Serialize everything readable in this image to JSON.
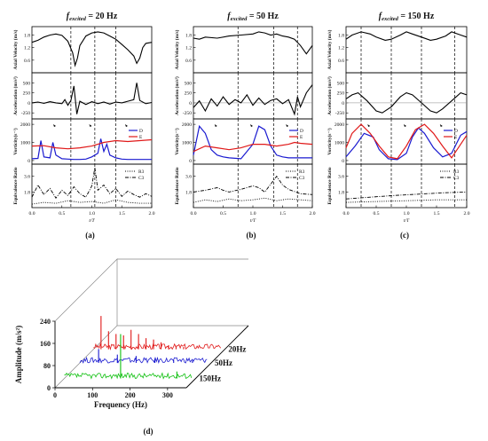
{
  "panels": [
    {
      "title_italic": "f",
      "title_sub": "excited",
      "title_rest": " = 20 Hz",
      "label": "(a)",
      "xlabel": "t/T",
      "legend_vorticity": [
        "D",
        "E"
      ],
      "legend_ratio": [
        "R3",
        "C3"
      ]
    },
    {
      "title_italic": "f",
      "title_sub": "excited",
      "title_rest": " = 50 Hz",
      "label": "(b)",
      "xlabel": "t/T",
      "legend_vorticity": [
        "D",
        "E"
      ],
      "legend_ratio": [
        "R3",
        "C3"
      ]
    },
    {
      "title_italic": "f",
      "title_sub": "excited",
      "title_rest": " = 150 Hz",
      "label": "(c)",
      "xlabel": "t/T",
      "legend_vorticity": [
        "D",
        "E"
      ],
      "legend_ratio": [
        "R3",
        "C3"
      ]
    }
  ],
  "row_labels": {
    "velocity": "Axial Velocity (m/s)",
    "acceleration": "Acceleration (m/s²)",
    "vorticity": "Vorticity(s⁻¹)",
    "ratio": "Equivalence Ratio"
  },
  "waterfall": {
    "label": "(d)",
    "ylabel": "Amplitude (m/s²)",
    "xlabel": "Frequency (Hz)",
    "series_labels": [
      "20Hz",
      "50Hz",
      "150Hz"
    ],
    "series_colors": [
      "#e01818",
      "#1a1ad0",
      "#10c010"
    ]
  },
  "chart_data": [
    {
      "type": "line",
      "panel": "a",
      "x_range": [
        0,
        2.0
      ],
      "x_ticks": [
        "0.0",
        "0.5",
        "1.0",
        "1.5",
        "2.0"
      ],
      "dashed_lines_x": [
        0.65,
        1.05,
        1.4
      ],
      "rows": {
        "velocity": {
          "ylim": [
            0.0,
            2.2
          ],
          "yticks": [
            "0.6",
            "1.2",
            "1.8"
          ],
          "x": [
            0,
            0.1,
            0.2,
            0.3,
            0.4,
            0.5,
            0.6,
            0.68,
            0.72,
            0.76,
            0.8,
            0.9,
            1.0,
            1.1,
            1.2,
            1.3,
            1.4,
            1.5,
            1.6,
            1.7,
            1.75,
            1.8,
            1.85,
            1.9,
            2.0
          ],
          "y": [
            1.45,
            1.55,
            1.7,
            1.8,
            1.85,
            1.78,
            1.5,
            0.95,
            0.35,
            0.7,
            1.3,
            1.75,
            1.9,
            1.95,
            1.9,
            1.75,
            1.6,
            1.35,
            1.1,
            0.8,
            0.45,
            0.7,
            1.2,
            1.4,
            1.45
          ]
        },
        "acceleration": {
          "ylim": [
            -400,
            750
          ],
          "yticks": [
            "-250",
            "0",
            "250",
            "500"
          ],
          "x": [
            0,
            0.1,
            0.2,
            0.3,
            0.4,
            0.5,
            0.55,
            0.6,
            0.65,
            0.7,
            0.75,
            0.8,
            0.9,
            1.0,
            1.1,
            1.2,
            1.3,
            1.4,
            1.5,
            1.6,
            1.7,
            1.75,
            1.8,
            1.9,
            2.0
          ],
          "y": [
            0,
            20,
            -10,
            30,
            0,
            -20,
            80,
            -60,
            60,
            420,
            -280,
            40,
            -40,
            30,
            -20,
            20,
            -30,
            20,
            0,
            40,
            80,
            500,
            60,
            -20,
            10
          ]
        },
        "vorticity": {
          "ylim": [
            -200,
            2300
          ],
          "yticks": [
            "0",
            "1000",
            "2000"
          ],
          "series": [
            {
              "name": "D",
              "color": "#1a1ad0",
              "x": [
                0,
                0.1,
                0.15,
                0.2,
                0.3,
                0.35,
                0.4,
                0.5,
                0.6,
                0.7,
                0.8,
                0.9,
                1.0,
                1.1,
                1.15,
                1.2,
                1.25,
                1.3,
                1.4,
                1.5,
                1.6,
                1.8,
                2.0
              ],
              "y": [
                100,
                120,
                1100,
                200,
                150,
                1000,
                300,
                100,
                80,
                60,
                60,
                80,
                200,
                400,
                1200,
                500,
                900,
                300,
                150,
                80,
                60,
                60,
                60
              ]
            },
            {
              "name": "E",
              "color": "#e01818",
              "x": [
                0,
                0.2,
                0.4,
                0.6,
                0.8,
                1.0,
                1.2,
                1.4,
                1.6,
                1.8,
                2.0
              ],
              "y": [
                800,
                820,
                700,
                650,
                700,
                800,
                1000,
                1100,
                1050,
                1100,
                1150
              ]
            }
          ]
        },
        "ratio": {
          "ylim": [
            0,
            5.0
          ],
          "yticks": [
            "1.8",
            "3.6"
          ],
          "series": [
            {
              "name": "R3",
              "style": "dotted",
              "x": [
                0,
                0.2,
                0.4,
                0.6,
                0.8,
                1.0,
                1.2,
                1.4,
                1.6,
                1.8,
                2.0
              ],
              "y": [
                0.4,
                0.6,
                0.5,
                0.8,
                0.6,
                0.7,
                0.5,
                0.9,
                0.6,
                0.5,
                0.5
              ]
            },
            {
              "name": "C3",
              "style": "dashdot",
              "x": [
                0,
                0.1,
                0.2,
                0.3,
                0.4,
                0.5,
                0.6,
                0.7,
                0.8,
                0.9,
                1.0,
                1.05,
                1.1,
                1.2,
                1.3,
                1.4,
                1.5,
                1.6,
                1.7,
                1.8,
                1.9,
                2.0
              ],
              "y": [
                1.2,
                2.6,
                1.5,
                2.2,
                1.1,
                2.0,
                1.4,
                2.4,
                1.6,
                1.2,
                2.5,
                4.6,
                2.0,
                2.6,
                1.6,
                2.2,
                1.3,
                1.9,
                1.5,
                1.2,
                1.6,
                1.3
              ]
            }
          ]
        }
      }
    },
    {
      "type": "line",
      "panel": "b",
      "x_range": [
        0,
        2.0
      ],
      "x_ticks": [
        "0.0",
        "0.5",
        "1.0",
        "1.5",
        "2.0"
      ],
      "dashed_lines_x": [
        0.75,
        1.35,
        1.75
      ],
      "rows": {
        "velocity": {
          "ylim": [
            0.0,
            2.2
          ],
          "yticks": [
            "0.6",
            "1.2",
            "1.8"
          ],
          "x": [
            0,
            0.1,
            0.2,
            0.4,
            0.6,
            0.8,
            1.0,
            1.1,
            1.2,
            1.3,
            1.4,
            1.5,
            1.6,
            1.7,
            1.8,
            1.9,
            2.0
          ],
          "y": [
            1.65,
            1.6,
            1.7,
            1.65,
            1.75,
            1.8,
            1.85,
            1.95,
            1.9,
            1.8,
            1.85,
            1.75,
            1.7,
            1.6,
            1.3,
            0.9,
            1.3
          ]
        },
        "acceleration": {
          "ylim": [
            -400,
            750
          ],
          "yticks": [
            "-250",
            "0",
            "250",
            "500"
          ],
          "x": [
            0,
            0.1,
            0.2,
            0.3,
            0.4,
            0.5,
            0.6,
            0.7,
            0.8,
            0.9,
            1.0,
            1.1,
            1.2,
            1.3,
            1.4,
            1.5,
            1.6,
            1.7,
            1.75,
            1.8,
            1.9,
            2.0
          ],
          "y": [
            -120,
            50,
            -200,
            100,
            -80,
            150,
            -40,
            80,
            0,
            200,
            -60,
            120,
            -40,
            60,
            100,
            -20,
            80,
            -280,
            150,
            -100,
            250,
            450
          ]
        },
        "vorticity": {
          "ylim": [
            -200,
            2300
          ],
          "yticks": [
            "0",
            "1000",
            "2000"
          ],
          "series": [
            {
              "name": "D",
              "color": "#1a1ad0",
              "x": [
                0,
                0.1,
                0.2,
                0.3,
                0.4,
                0.5,
                0.6,
                0.8,
                1.0,
                1.1,
                1.2,
                1.3,
                1.4,
                1.5,
                1.6,
                1.8,
                2.0
              ],
              "y": [
                300,
                1900,
                1500,
                600,
                300,
                200,
                150,
                100,
                900,
                1900,
                1700,
                800,
                300,
                200,
                150,
                150,
                150
              ]
            },
            {
              "name": "E",
              "color": "#e01818",
              "x": [
                0,
                0.2,
                0.4,
                0.6,
                0.8,
                1.0,
                1.2,
                1.4,
                1.6,
                1.7,
                1.8,
                2.0
              ],
              "y": [
                500,
                800,
                700,
                600,
                700,
                900,
                900,
                800,
                900,
                1000,
                950,
                900
              ]
            }
          ]
        },
        "ratio": {
          "ylim": [
            0,
            5.0
          ],
          "yticks": [
            "1.8",
            "3.6"
          ],
          "series": [
            {
              "name": "R3",
              "style": "dotted",
              "x": [
                0,
                0.2,
                0.4,
                0.6,
                0.8,
                1.0,
                1.2,
                1.4,
                1.6,
                1.8,
                2.0
              ],
              "y": [
                0.6,
                0.9,
                0.7,
                1.0,
                0.8,
                0.9,
                1.1,
                0.8,
                1.0,
                0.9,
                0.8
              ]
            },
            {
              "name": "C3",
              "style": "dashdot",
              "x": [
                0,
                0.2,
                0.4,
                0.5,
                0.6,
                0.8,
                1.0,
                1.1,
                1.2,
                1.4,
                1.5,
                1.6,
                1.8,
                2.0
              ],
              "y": [
                1.8,
                2.0,
                2.3,
                2.0,
                1.8,
                2.1,
                2.5,
                2.3,
                1.8,
                3.6,
                2.6,
                2.1,
                1.6,
                1.5
              ]
            }
          ]
        }
      }
    },
    {
      "type": "line",
      "panel": "c",
      "x_range": [
        0,
        2.0
      ],
      "x_ticks": [
        "0.0",
        "0.5",
        "1.0",
        "1.5",
        "2.0"
      ],
      "dashed_lines_x": [
        0.25,
        0.75,
        1.25,
        1.8
      ],
      "rows": {
        "velocity": {
          "ylim": [
            0.0,
            2.2
          ],
          "yticks": [
            "0.6",
            "1.2",
            "1.8"
          ],
          "x": [
            0,
            0.1,
            0.25,
            0.4,
            0.5,
            0.65,
            0.75,
            0.9,
            1.0,
            1.1,
            1.25,
            1.4,
            1.5,
            1.65,
            1.75,
            1.9,
            2.0
          ],
          "y": [
            1.6,
            1.8,
            1.95,
            1.85,
            1.7,
            1.55,
            1.6,
            1.8,
            1.95,
            1.85,
            1.7,
            1.55,
            1.6,
            1.75,
            1.95,
            1.8,
            1.7
          ]
        },
        "acceleration": {
          "ylim": [
            -400,
            750
          ],
          "yticks": [
            "-250",
            "0",
            "250",
            "500"
          ],
          "x": [
            0,
            0.1,
            0.2,
            0.35,
            0.5,
            0.6,
            0.75,
            0.9,
            1.0,
            1.1,
            1.25,
            1.4,
            1.5,
            1.6,
            1.75,
            1.9,
            2.0
          ],
          "y": [
            100,
            200,
            250,
            50,
            -200,
            -250,
            -100,
            150,
            250,
            200,
            0,
            -200,
            -250,
            -150,
            50,
            250,
            200
          ]
        },
        "vorticity": {
          "ylim": [
            -200,
            2300
          ],
          "yticks": [
            "0",
            "1000",
            "2000"
          ],
          "series": [
            {
              "name": "D",
              "color": "#1a1ad0",
              "x": [
                0,
                0.15,
                0.3,
                0.45,
                0.55,
                0.7,
                0.85,
                1.0,
                1.1,
                1.2,
                1.3,
                1.45,
                1.6,
                1.75,
                1.9,
                2.0
              ],
              "y": [
                200,
                800,
                1500,
                1300,
                600,
                100,
                50,
                400,
                1300,
                1800,
                1500,
                700,
                200,
                400,
                1400,
                1600
              ]
            },
            {
              "name": "E",
              "color": "#e01818",
              "x": [
                0,
                0.1,
                0.25,
                0.4,
                0.55,
                0.7,
                0.85,
                1.0,
                1.15,
                1.3,
                1.45,
                1.6,
                1.75,
                1.9,
                2.0
              ],
              "y": [
                700,
                1500,
                2000,
                1500,
                800,
                200,
                100,
                800,
                1700,
                2000,
                1500,
                800,
                150,
                900,
                1400
              ]
            }
          ]
        },
        "ratio": {
          "ylim": [
            0,
            5.0
          ],
          "yticks": [
            "1.8",
            "3.6"
          ],
          "series": [
            {
              "name": "R3",
              "style": "dotted",
              "x": [
                0,
                0.5,
                1.0,
                1.5,
                2.0
              ],
              "y": [
                0.6,
                0.7,
                0.8,
                0.9,
                0.9
              ]
            },
            {
              "name": "C3",
              "style": "dashdot",
              "x": [
                0,
                0.4,
                0.8,
                1.2,
                1.6,
                2.0
              ],
              "y": [
                1.0,
                1.2,
                1.4,
                1.55,
                1.7,
                1.8
              ]
            }
          ]
        }
      }
    },
    {
      "type": "line",
      "panel": "d",
      "subtype": "waterfall",
      "xlabel": "Frequency (Hz)",
      "ylabel": "Amplitude (m/s²)",
      "x_range": [
        0,
        350
      ],
      "x_ticks": [
        "0",
        "100",
        "200",
        "300"
      ],
      "ylim": [
        0,
        240
      ],
      "y_ticks": [
        "0",
        "80",
        "160",
        "240"
      ],
      "series": [
        {
          "name": "20Hz",
          "peaks_x": [
            20,
            40,
            60,
            80,
            100,
            120,
            140,
            160,
            180,
            200,
            220,
            240
          ],
          "peaks_y": [
            120,
            65,
            55,
            50,
            70,
            55,
            40,
            35,
            25,
            15,
            10,
            8
          ]
        },
        {
          "name": "50Hz",
          "peaks_x": [
            50,
            100,
            150,
            200,
            250,
            300
          ],
          "peaks_y": [
            50,
            30,
            25,
            15,
            10,
            8
          ]
        },
        {
          "name": "150Hz",
          "peaks_x": [
            150,
            300
          ],
          "peaks_y": [
            160,
            25
          ]
        }
      ]
    }
  ]
}
